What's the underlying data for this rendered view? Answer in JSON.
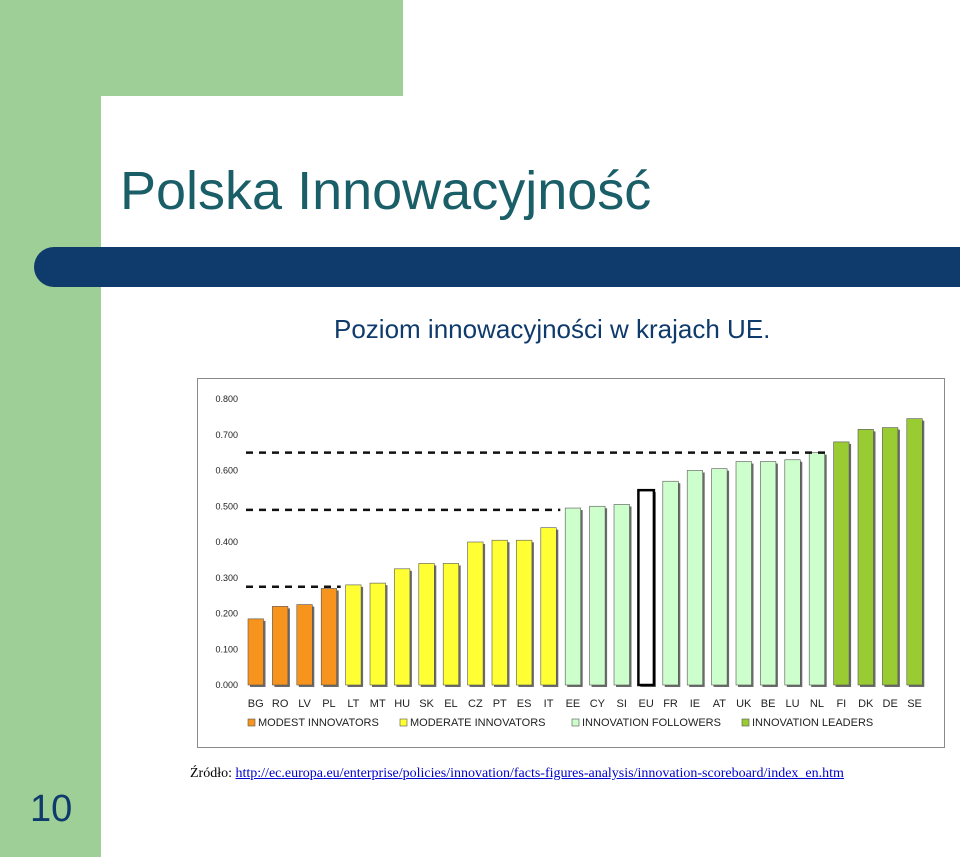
{
  "slide": {
    "title": "Polska Innowacyjność",
    "subtitle": "Poziom innowacyjności w krajach UE.",
    "source_label": "Źródło:",
    "source_url": "http://ec.europa.eu/enterprise/policies/innovation/facts-figures-analysis/innovation-scoreboard/index_en.htm",
    "page_number": "10"
  },
  "colors": {
    "modest": "#f7941d",
    "moderate": "#ffff33",
    "followers": "#ccffcc",
    "leaders": "#99cc33",
    "eu_outline": "#000000",
    "title": "#1a5e68",
    "bar_blue": "#0e3a6c",
    "slide_green": "#9ecf97"
  },
  "chart_data": {
    "type": "bar",
    "title": "",
    "xlabel": "",
    "ylabel": "",
    "ylim": [
      0,
      0.8
    ],
    "yticks": [
      "0.000",
      "0.100",
      "0.200",
      "0.300",
      "0.400",
      "0.500",
      "0.600",
      "0.700",
      "0.800"
    ],
    "grid": false,
    "legend_position": "bottom",
    "categories": [
      "BG",
      "RO",
      "LV",
      "PL",
      "LT",
      "MT",
      "HU",
      "SK",
      "EL",
      "CZ",
      "PT",
      "ES",
      "IT",
      "EE",
      "CY",
      "SI",
      "EU",
      "FR",
      "IE",
      "AT",
      "UK",
      "BE",
      "LU",
      "NL",
      "FI",
      "DK",
      "DE",
      "SE"
    ],
    "values": [
      0.185,
      0.22,
      0.225,
      0.27,
      0.28,
      0.285,
      0.325,
      0.34,
      0.34,
      0.4,
      0.405,
      0.405,
      0.44,
      0.495,
      0.5,
      0.505,
      0.545,
      0.57,
      0.6,
      0.605,
      0.625,
      0.625,
      0.63,
      0.65,
      0.68,
      0.715,
      0.72,
      0.745
    ],
    "groups": [
      "modest",
      "modest",
      "modest",
      "modest",
      "moderate",
      "moderate",
      "moderate",
      "moderate",
      "moderate",
      "moderate",
      "moderate",
      "moderate",
      "moderate",
      "followers",
      "followers",
      "followers",
      "eu",
      "followers",
      "followers",
      "followers",
      "followers",
      "followers",
      "followers",
      "followers",
      "leaders",
      "leaders",
      "leaders",
      "leaders"
    ],
    "legend": [
      {
        "key": "modest",
        "label": "MODEST INNOVATORS"
      },
      {
        "key": "moderate",
        "label": "MODERATE INNOVATORS"
      },
      {
        "key": "followers",
        "label": "INNOVATION FOLLOWERS"
      },
      {
        "key": "leaders",
        "label": "INNOVATION LEADERS"
      }
    ],
    "thresholds": [
      {
        "y": 0.275,
        "from": "BG",
        "to": "PL"
      },
      {
        "y": 0.49,
        "from": "BG",
        "to": "IT"
      },
      {
        "y": 0.65,
        "from": "BG",
        "to": "NL"
      }
    ]
  }
}
